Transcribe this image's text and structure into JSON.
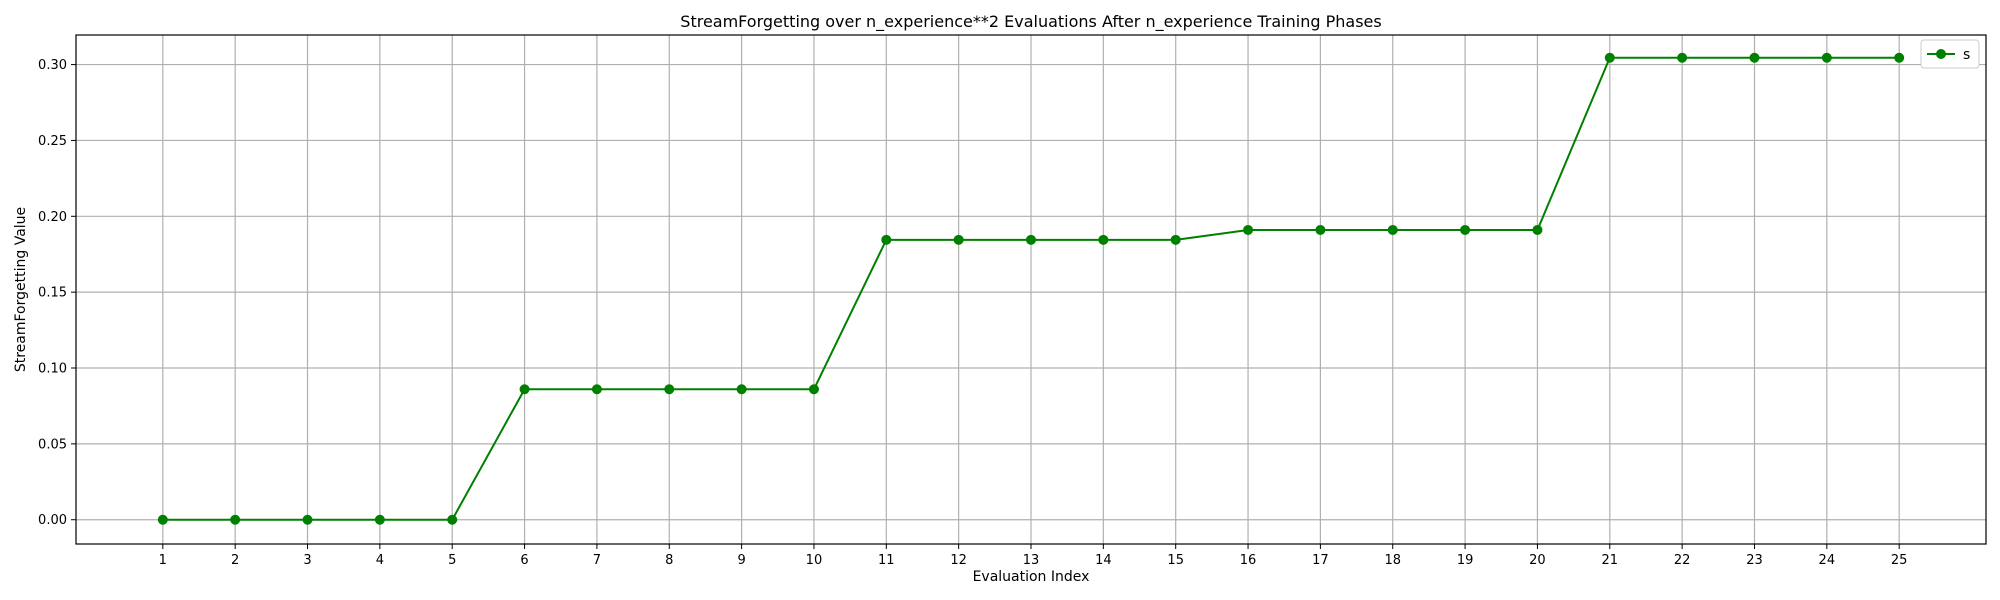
{
  "chart_data": {
    "type": "line",
    "title": "StreamForgetting over n_experience**2 Evaluations After n_experience Training Phases",
    "xlabel": "Evaluation Index",
    "ylabel": "StreamForgetting Value",
    "x": [
      1,
      2,
      3,
      4,
      5,
      6,
      7,
      8,
      9,
      10,
      11,
      12,
      13,
      14,
      15,
      16,
      17,
      18,
      19,
      20,
      21,
      22,
      23,
      24,
      25
    ],
    "series": [
      {
        "name": "s",
        "color": "#008000",
        "marker": "circle",
        "values": [
          0.0,
          0.0,
          0.0,
          0.0,
          0.0,
          0.086,
          0.086,
          0.086,
          0.086,
          0.086,
          0.1845,
          0.1845,
          0.1845,
          0.1845,
          0.1845,
          0.191,
          0.191,
          0.191,
          0.191,
          0.191,
          0.3045,
          0.3045,
          0.3045,
          0.3045,
          0.3045
        ]
      }
    ],
    "xlim": [
      -0.2,
      26.2
    ],
    "ylim": [
      -0.016,
      0.3195
    ],
    "yticks": [
      0.0,
      0.05,
      0.1,
      0.15,
      0.2,
      0.25,
      0.3
    ],
    "ytick_labels": [
      "0.00",
      "0.05",
      "0.10",
      "0.15",
      "0.20",
      "0.25",
      "0.30"
    ],
    "xtick_labels": [
      "1",
      "2",
      "3",
      "4",
      "5",
      "6",
      "7",
      "8",
      "9",
      "10",
      "11",
      "12",
      "13",
      "14",
      "15",
      "16",
      "17",
      "18",
      "19",
      "20",
      "21",
      "22",
      "23",
      "24",
      "25"
    ],
    "grid": true,
    "legend_position": "top-right"
  }
}
